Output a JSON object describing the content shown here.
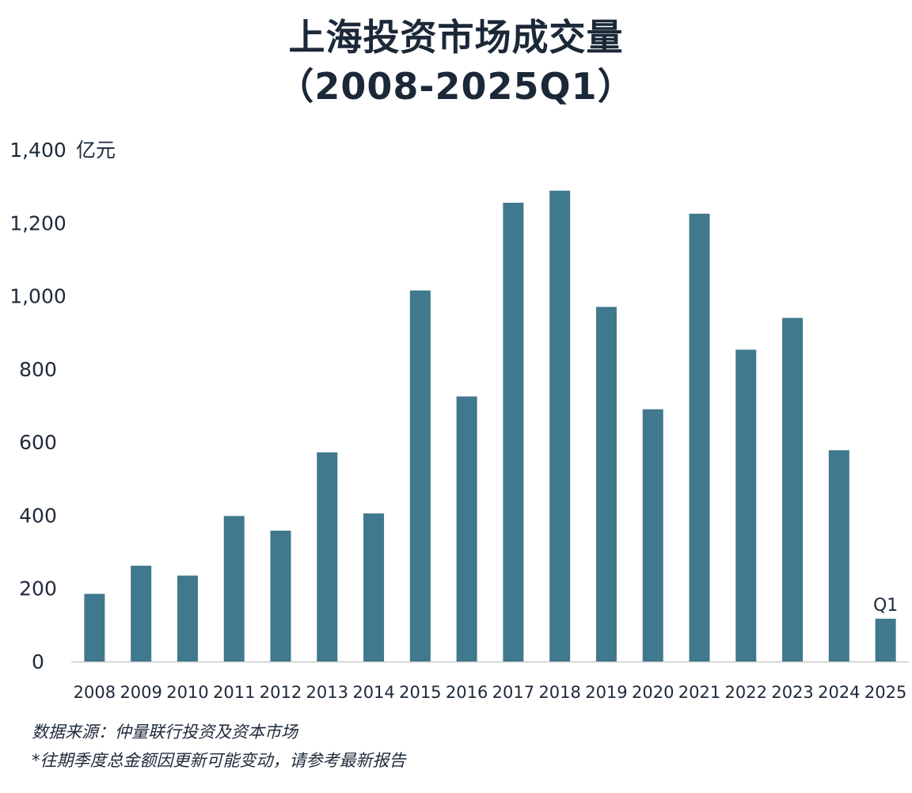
{
  "title_line1": "上海投资市场成交量",
  "title_line2": "（2008-2025Q1）",
  "source_note": "数据来源：仲量联行投资及资本市场",
  "disclaimer_note": "*往期季度总金额因更新可能变动，请参考最新报告",
  "colors": {
    "bar": "#40788d",
    "axis": "#c9c9c9",
    "text": "#1d2a3a"
  },
  "chart_data": {
    "type": "bar",
    "title": "上海投资市场成交量",
    "subtitle": "（2008-2025Q1）",
    "ylabel": "亿元",
    "xlabel": "",
    "ylim": [
      0,
      1400
    ],
    "yticks": [
      "0",
      "200",
      "400",
      "600",
      "800",
      "1,000",
      "1,200",
      "1,400"
    ],
    "ytick_values": [
      0,
      200,
      400,
      600,
      800,
      1000,
      1200,
      1400
    ],
    "grid": false,
    "categories": [
      "2008",
      "2009",
      "2010",
      "2011",
      "2012",
      "2013",
      "2014",
      "2015",
      "2016",
      "2017",
      "2018",
      "2019",
      "2020",
      "2021",
      "2022",
      "2023",
      "2024",
      "2025"
    ],
    "values": [
      185,
      262,
      235,
      398,
      358,
      572,
      405,
      1015,
      725,
      1255,
      1288,
      970,
      690,
      1225,
      853,
      940,
      578,
      117
    ],
    "annotations": [
      {
        "category": "2025",
        "text": "Q1"
      }
    ]
  }
}
